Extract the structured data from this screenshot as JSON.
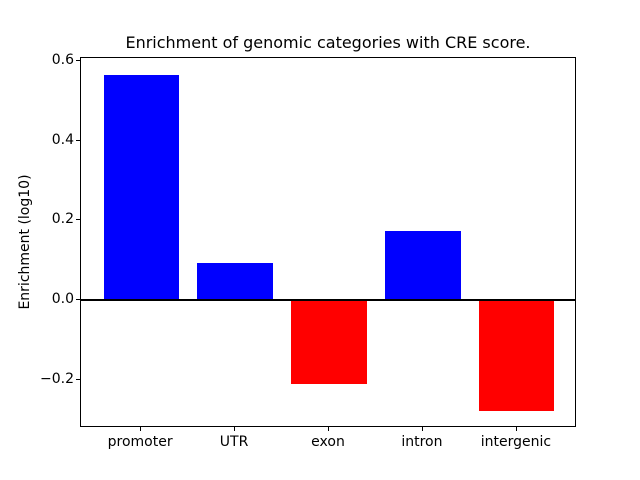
{
  "figure": {
    "background": "#ffffff"
  },
  "chart_data": {
    "type": "bar",
    "title": "Enrichment of genomic categories with CRE score.",
    "xlabel": "",
    "ylabel": "Enrichment (log10)",
    "categories": [
      "promoter",
      "UTR",
      "exon",
      "intron",
      "intergenic"
    ],
    "values": [
      0.565,
      0.093,
      -0.211,
      0.173,
      -0.277
    ],
    "bar_colors": [
      "#0000ff",
      "#0000ff",
      "#ff0000",
      "#0000ff",
      "#ff0000"
    ],
    "positive_color": "#0000ff",
    "negative_color": "#ff0000",
    "bar_width": 0.8,
    "xlim": [
      -0.64,
      4.64
    ],
    "ylim": [
      -0.32,
      0.607
    ],
    "yticks": [
      -0.2,
      0.0,
      0.2,
      0.4,
      0.6
    ],
    "ytick_labels": [
      "−0.2",
      "0.0",
      "0.2",
      "0.4",
      "0.6"
    ],
    "zero_line": true,
    "zero_line_color": "#000000",
    "grid": false,
    "legend": null,
    "axis_color": "#000000"
  }
}
